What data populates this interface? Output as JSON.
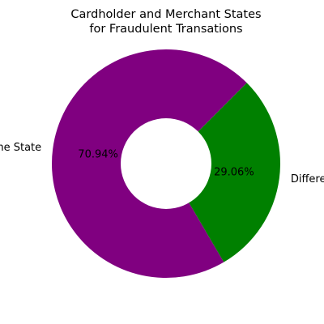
{
  "chart_data": {
    "type": "pie",
    "style": "donut",
    "title_lines": [
      "Cardholder and Merchant States",
      "for Fraudulent Transations"
    ],
    "slices": [
      {
        "label": "Same State",
        "value": 70.94,
        "display": "70.94%",
        "color": "#800080"
      },
      {
        "label": "Different State",
        "value": 29.06,
        "display": "29.06%",
        "color": "#008000"
      }
    ]
  }
}
